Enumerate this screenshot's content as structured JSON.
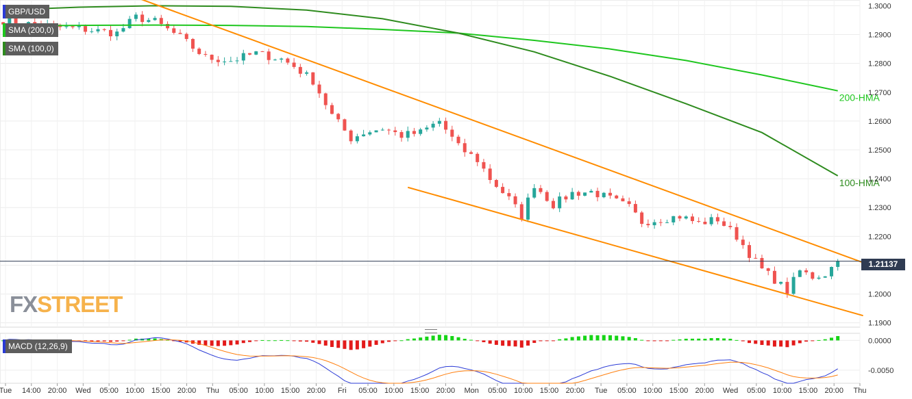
{
  "symbol": "GBP/USD",
  "legends": {
    "main": "GBP/USD",
    "sma200": "SMA (200,0)",
    "sma100": "SMA (100,0)",
    "macd": "MACD (12,26,9)"
  },
  "last_price": "1.21137",
  "watermark": {
    "fx": "FX",
    "street": "STREET"
  },
  "colors": {
    "bull": "#26a69a",
    "bear": "#ef5350",
    "sma200": "#1ec61e",
    "sma100": "#2e8b1e",
    "channel": "#ff8c00",
    "macd_line": "#2b3bd6",
    "signal_line": "#ff7f0e",
    "hist_pos": "#17d417",
    "hist_neg": "#e31a1a",
    "last_price_tag": "#2f3b52"
  },
  "chart_data": {
    "type": "candlestick",
    "price_axis": {
      "ticks": [
        "1.3000",
        "1.2900",
        "1.2800",
        "1.2700",
        "1.2600",
        "1.2500",
        "1.2400",
        "1.2300",
        "1.2200",
        "1.2100",
        "1.2000",
        "1.1900"
      ],
      "range": [
        1.1885,
        1.302
      ]
    },
    "macd_axis": {
      "ticks": [
        "0.0000",
        "-0.0050"
      ],
      "range": [
        -0.0072,
        0.0012
      ]
    },
    "time_axis": {
      "labels": [
        "Tue",
        "14:00",
        "20:00",
        "Wed",
        "05:00",
        "10:00",
        "15:00",
        "20:00",
        "Thu",
        "05:00",
        "10:00",
        "15:00",
        "20:00",
        "Fri",
        "05:00",
        "10:00",
        "15:00",
        "20:00",
        "Mon",
        "05:00",
        "10:00",
        "15:00",
        "20:00",
        "Tue",
        "05:00",
        "10:00",
        "15:00",
        "20:00",
        "Wed",
        "05:00",
        "10:00",
        "15:00",
        "20:00",
        "Thu"
      ]
    },
    "price_path": [
      [
        0,
        1.295
      ],
      [
        6,
        1.293
      ],
      [
        12,
        1.292
      ],
      [
        18,
        1.2905
      ],
      [
        21,
        1.296
      ],
      [
        24,
        1.2945
      ],
      [
        28,
        1.289
      ],
      [
        32,
        1.282
      ],
      [
        36,
        1.281
      ],
      [
        40,
        1.2835
      ],
      [
        44,
        1.2815
      ],
      [
        46,
        1.279
      ],
      [
        49,
        1.274
      ],
      [
        52,
        1.262
      ],
      [
        55,
        1.254
      ],
      [
        57,
        1.256
      ],
      [
        60,
        1.2575
      ],
      [
        63,
        1.255
      ],
      [
        66,
        1.256
      ],
      [
        69,
        1.26
      ],
      [
        72,
        1.251
      ],
      [
        75,
        1.2465
      ],
      [
        77,
        1.24
      ],
      [
        80,
        1.233
      ],
      [
        82,
        1.227
      ],
      [
        84,
        1.238
      ],
      [
        87,
        1.231
      ],
      [
        90,
        1.235
      ],
      [
        93,
        1.2355
      ],
      [
        96,
        1.233
      ],
      [
        99,
        1.23
      ],
      [
        101,
        1.225
      ],
      [
        104,
        1.226
      ],
      [
        107,
        1.227
      ],
      [
        110,
        1.2245
      ],
      [
        113,
        1.226
      ],
      [
        116,
        1.22
      ],
      [
        118,
        1.214
      ],
      [
        120,
        1.2085
      ],
      [
        122,
        1.205
      ],
      [
        124,
        1.201
      ],
      [
        126,
        1.208
      ],
      [
        128,
        1.206
      ],
      [
        130,
        1.207
      ],
      [
        132,
        1.2114
      ]
    ],
    "series": [
      {
        "name": "200-HMA",
        "label_value": 1.2705,
        "values": [
          1.293,
          1.2932,
          1.2933,
          1.2932,
          1.2928,
          1.2918,
          1.2905,
          1.288,
          1.285,
          1.281,
          1.276,
          1.2705
        ]
      },
      {
        "name": "100-HMA",
        "label_value": 1.241,
        "values": [
          1.2985,
          1.2995,
          1.3,
          1.2998,
          1.2985,
          1.2955,
          1.2905,
          1.284,
          1.2755,
          1.266,
          1.256,
          1.241
        ]
      }
    ],
    "channel_lines": [
      {
        "name": "upper",
        "from": [
          21.5,
          1.3025
        ],
        "to": [
          139,
          1.2085
        ]
      },
      {
        "name": "lower",
        "from": [
          64,
          1.237
        ],
        "to": [
          136,
          1.1925
        ]
      }
    ],
    "last_price": 1.21137
  }
}
